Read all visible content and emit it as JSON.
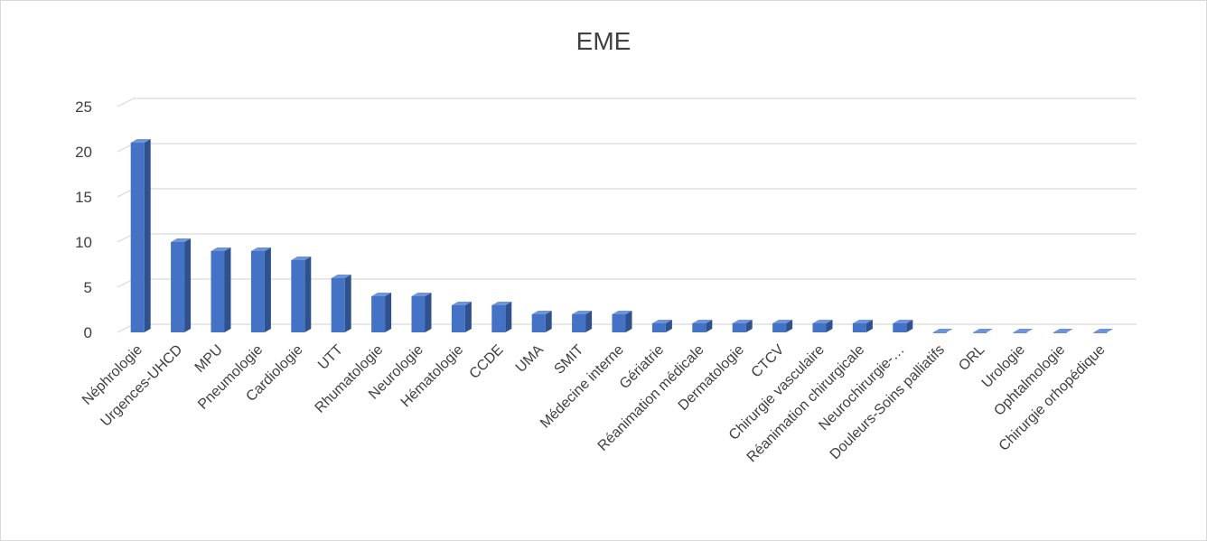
{
  "chart_data": {
    "type": "bar",
    "title": "EME",
    "xlabel": "",
    "ylabel": "",
    "ylim": [
      0,
      25
    ],
    "yticks": [
      0,
      5,
      10,
      15,
      20,
      25
    ],
    "grid": true,
    "categories": [
      "Néphrologie",
      "Urgences-UHCD",
      "MPU",
      "Pneumologie",
      "Cardiologie",
      "UTT",
      "Rhumatologie",
      "Neurologie",
      "Hématologie",
      "CCDE",
      "UMA",
      "SMIT",
      "Médecine interne",
      "Gériatrie",
      "Réanimation médicale",
      "Dermatologie",
      "CTCV",
      "Chirurgie vasculaire",
      "Réanimation chirurgicale",
      "Neurochirurgie-…",
      "Douleurs-Soins palliatifs",
      "ORL",
      "Urologie",
      "Ophtalmologie",
      "Chirurgie orhopédique"
    ],
    "values": [
      21,
      10,
      9,
      9,
      8,
      6,
      4,
      4,
      3,
      3,
      2,
      2,
      2,
      1,
      1,
      1,
      1,
      1,
      1,
      1,
      0,
      0,
      0,
      0,
      0
    ],
    "colors": {
      "front": "#4472c4",
      "side": "#2f528f",
      "top": "#6f93d8",
      "grid": "#d9d9d9",
      "text": "#404040"
    }
  }
}
